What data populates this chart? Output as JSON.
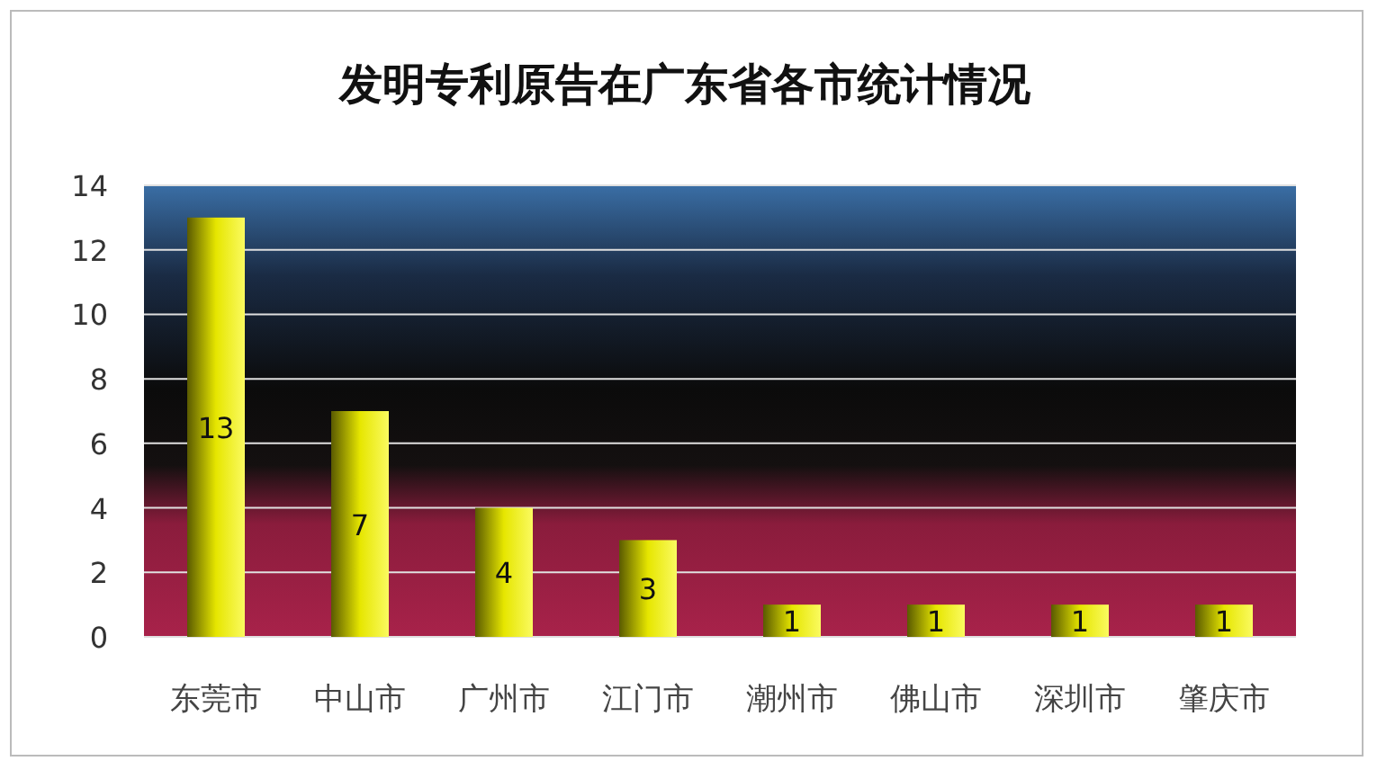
{
  "chart_data": {
    "type": "bar",
    "title": "发明专利原告在广东省各市统计情况",
    "categories": [
      "东莞市",
      "中山市",
      "广州市",
      "江门市",
      "潮州市",
      "佛山市",
      "深圳市",
      "肇庆市"
    ],
    "values": [
      13,
      7,
      4,
      3,
      1,
      1,
      1,
      1
    ],
    "color": "#e6e600",
    "ylim": [
      0,
      14
    ],
    "yticks": [
      0,
      2,
      4,
      6,
      8,
      10,
      12,
      14
    ],
    "grid": "y",
    "data_labels": true
  }
}
